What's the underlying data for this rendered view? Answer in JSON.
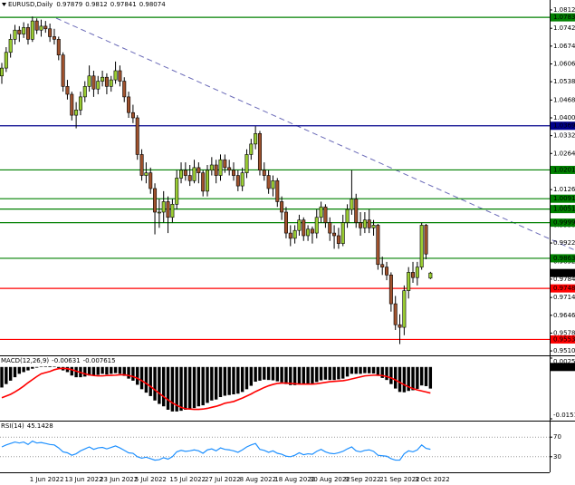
{
  "chart_data": [
    {
      "type": "candlestick",
      "title": "EURUSD,Daily",
      "categories": [
        null,
        null,
        null,
        null,
        null,
        null,
        null,
        "1 Jun 2022",
        null,
        null,
        null,
        null,
        null,
        null,
        null,
        "13 Jun 2022",
        null,
        null,
        null,
        null,
        null,
        null,
        null,
        "23 Jun 2022",
        null,
        null,
        null,
        null,
        null,
        null,
        null,
        "5 Jul 2022",
        null,
        null,
        null,
        null,
        null,
        null,
        null,
        "15 Jul 2022",
        null,
        null,
        null,
        null,
        null,
        null,
        null,
        "27 Jul 2022",
        null,
        null,
        null,
        null,
        null,
        null,
        null,
        "8 Aug 2022",
        null,
        null,
        null,
        null,
        null,
        null,
        null,
        "18 Aug 2022",
        null,
        null,
        null,
        null,
        null,
        null,
        null,
        "30 Aug 2022",
        null,
        null,
        null,
        null,
        null,
        null,
        null,
        "9 Sep 2022",
        null,
        null,
        null,
        null,
        null,
        null,
        null,
        "21 Sep 2022",
        null,
        null,
        null,
        null,
        null,
        null,
        null,
        "3 Oct 2022",
        null,
        null,
        null
      ],
      "ohlc": [
        [
          1.056,
          1.061,
          1.053,
          1.059
        ],
        [
          1.059,
          1.067,
          1.0575,
          1.065
        ],
        [
          1.065,
          1.072,
          1.063,
          1.07
        ],
        [
          1.07,
          1.0755,
          1.068,
          1.0735
        ],
        [
          1.0735,
          1.075,
          1.069,
          1.072
        ],
        [
          1.072,
          1.0765,
          1.0705,
          1.0745
        ],
        [
          1.0745,
          1.076,
          1.068,
          1.07
        ],
        [
          1.07,
          1.0787,
          1.069,
          1.077
        ],
        [
          1.077,
          1.078,
          1.072,
          1.0735
        ],
        [
          1.0735,
          1.0775,
          1.071,
          1.075
        ],
        [
          1.075,
          1.077,
          1.0725,
          1.074
        ],
        [
          1.074,
          1.076,
          1.069,
          1.071
        ],
        [
          1.071,
          1.074,
          1.068,
          1.07
        ],
        [
          1.07,
          1.071,
          1.062,
          1.064
        ],
        [
          1.064,
          1.065,
          1.05,
          1.052
        ],
        [
          1.052,
          1.0545,
          1.047,
          1.049
        ],
        [
          1.049,
          1.05,
          1.039,
          1.041
        ],
        [
          1.041,
          1.046,
          1.036,
          1.043
        ],
        [
          1.043,
          1.05,
          1.041,
          1.048
        ],
        [
          1.048,
          1.054,
          1.046,
          1.052
        ],
        [
          1.052,
          1.06,
          1.05,
          1.056
        ],
        [
          1.056,
          1.058,
          1.048,
          1.051
        ],
        [
          1.051,
          1.056,
          1.049,
          1.054
        ],
        [
          1.054,
          1.058,
          1.052,
          1.0555
        ],
        [
          1.0555,
          1.057,
          1.049,
          1.052
        ],
        [
          1.052,
          1.056,
          1.05,
          1.0545
        ],
        [
          1.0545,
          1.0615,
          1.053,
          1.058
        ],
        [
          1.058,
          1.06,
          1.052,
          1.054
        ],
        [
          1.054,
          1.0555,
          1.046,
          1.048
        ],
        [
          1.048,
          1.05,
          1.04,
          1.042
        ],
        [
          1.042,
          1.045,
          1.038,
          1.04
        ],
        [
          1.04,
          1.041,
          1.024,
          1.026
        ],
        [
          1.026,
          1.028,
          1.016,
          1.018
        ],
        [
          1.018,
          1.023,
          1.015,
          1.019
        ],
        [
          1.019,
          1.021,
          1.011,
          1.013
        ],
        [
          1.013,
          1.015,
          0.9955,
          1.004
        ],
        [
          1.004,
          1.009,
          0.998,
          1.004
        ],
        [
          1.004,
          1.012,
          1.0,
          1.008
        ],
        [
          1.008,
          1.01,
          0.996,
          1.002
        ],
        [
          1.002,
          1.009,
          1.0,
          1.007
        ],
        [
          1.007,
          1.02,
          1.005,
          1.017
        ],
        [
          1.017,
          1.023,
          1.015,
          1.02
        ],
        [
          1.02,
          1.023,
          1.016,
          1.018
        ],
        [
          1.018,
          1.022,
          1.014,
          1.016
        ],
        [
          1.016,
          1.024,
          1.015,
          1.021
        ],
        [
          1.021,
          1.023,
          1.015,
          1.019
        ],
        [
          1.019,
          1.02,
          1.01,
          1.012
        ],
        [
          1.012,
          1.022,
          1.01,
          1.02
        ],
        [
          1.02,
          1.025,
          1.018,
          1.022
        ],
        [
          1.022,
          1.024,
          1.015,
          1.018
        ],
        [
          1.018,
          1.026,
          1.016,
          1.024
        ],
        [
          1.024,
          1.026,
          1.019,
          1.021
        ],
        [
          1.021,
          1.024,
          1.018,
          1.02
        ],
        [
          1.02,
          1.023,
          1.016,
          1.018
        ],
        [
          1.018,
          1.02,
          1.012,
          1.014
        ],
        [
          1.014,
          1.021,
          1.012,
          1.019
        ],
        [
          1.019,
          1.028,
          1.017,
          1.026
        ],
        [
          1.026,
          1.032,
          1.024,
          1.03
        ],
        [
          1.03,
          1.0368,
          1.028,
          1.034
        ],
        [
          1.034,
          1.035,
          1.018,
          1.02
        ],
        [
          1.02,
          1.023,
          1.016,
          1.018
        ],
        [
          1.018,
          1.02,
          1.011,
          1.013
        ],
        [
          1.013,
          1.018,
          1.01,
          1.016
        ],
        [
          1.016,
          1.017,
          1.006,
          1.008
        ],
        [
          1.008,
          1.01,
          1.001,
          1.004
        ],
        [
          1.004,
          1.006,
          0.994,
          0.996
        ],
        [
          0.996,
          0.999,
          0.991,
          0.994
        ],
        [
          0.994,
          0.999,
          0.992,
          0.997
        ],
        [
          0.997,
          1.003,
          0.995,
          1.001
        ],
        [
          1.001,
          1.002,
          0.993,
          0.995
        ],
        [
          0.995,
          0.999,
          0.993,
          0.9975
        ],
        [
          0.9975,
          0.9985,
          0.992,
          0.996
        ],
        [
          0.996,
          1.005,
          0.994,
          1.002
        ],
        [
          1.002,
          1.008,
          1.0,
          1.006
        ],
        [
          1.006,
          1.007,
          0.998,
          1.0
        ],
        [
          1.0,
          1.002,
          0.993,
          0.996
        ],
        [
          0.996,
          0.999,
          0.99,
          0.995
        ],
        [
          0.995,
          0.998,
          0.99,
          0.992
        ],
        [
          0.992,
          1.003,
          0.991,
          1.0
        ],
        [
          1.0,
          1.007,
          0.998,
          1.005
        ],
        [
          1.005,
          1.02,
          1.003,
          1.009
        ],
        [
          1.009,
          1.011,
          0.998,
          1.0
        ],
        [
          1.0,
          1.004,
          0.995,
          0.998
        ],
        [
          0.998,
          1.004,
          0.996,
          1.001
        ],
        [
          1.001,
          1.005,
          0.996,
          0.998
        ],
        [
          0.998,
          1.001,
          0.995,
          0.999
        ],
        [
          0.999,
          0.9995,
          0.982,
          0.984
        ],
        [
          0.984,
          0.987,
          0.98,
          0.983
        ],
        [
          0.983,
          0.985,
          0.978,
          0.98
        ],
        [
          0.98,
          0.981,
          0.966,
          0.969
        ],
        [
          0.969,
          0.972,
          0.959,
          0.961
        ],
        [
          0.961,
          0.965,
          0.9536,
          0.96
        ],
        [
          0.96,
          0.976,
          0.957,
          0.974
        ],
        [
          0.974,
          0.983,
          0.971,
          0.981
        ],
        [
          0.981,
          0.985,
          0.977,
          0.979
        ],
        [
          0.979,
          0.985,
          0.976,
          0.983
        ],
        [
          0.983,
          0.9999,
          0.982,
          0.999
        ],
        [
          0.999,
          0.9995,
          0.986,
          0.988
        ],
        [
          0.97879,
          0.9812,
          0.97841,
          0.98074
        ]
      ],
      "up_color": "#9acd32",
      "down_color": "#a0522d",
      "ylim": [
        0.9493,
        1.085
      ],
      "yticks": [
        {
          "value": 1.0812,
          "label": "1.08120"
        },
        {
          "value": 1.0742,
          "label": "1.07420"
        },
        {
          "value": 1.0674,
          "label": "1.06740"
        },
        {
          "value": 1.0606,
          "label": "1.06060"
        },
        {
          "value": 1.0538,
          "label": "1.05380"
        },
        {
          "value": 1.0468,
          "label": "1.04680"
        },
        {
          "value": 1.04,
          "label": "1.04000"
        },
        {
          "value": 1.0332,
          "label": "1.03320"
        },
        {
          "value": 1.0264,
          "label": "1.02640"
        },
        {
          "value": 1.0196,
          "label": "1.01960"
        },
        {
          "value": 1.0126,
          "label": "1.01260"
        },
        {
          "value": 1.0058,
          "label": "1.00580"
        },
        {
          "value": 0.999,
          "label": "0.99900"
        },
        {
          "value": 0.9922,
          "label": "0.99220"
        },
        {
          "value": 0.9852,
          "label": "0.98520"
        },
        {
          "value": 0.9784,
          "label": "0.97840"
        },
        {
          "value": 0.9714,
          "label": "0.97140"
        },
        {
          "value": 0.9646,
          "label": "0.96460"
        },
        {
          "value": 0.9578,
          "label": "0.95780"
        },
        {
          "value": 0.951,
          "label": "0.95100"
        }
      ],
      "levels": [
        {
          "value": 1.07838,
          "color": "#008000"
        },
        {
          "value": 1.03697,
          "color": "#00008b"
        },
        {
          "value": 1.02011,
          "color": "#008000"
        },
        {
          "value": 1.00912,
          "color": "#008000"
        },
        {
          "value": 1.00516,
          "color": "#008000"
        },
        {
          "value": 0.99997,
          "color": "#008000"
        },
        {
          "value": 0.98637,
          "color": "#008000"
        },
        {
          "value": 0.97487,
          "color": "#ff0000"
        },
        {
          "value": 0.95538,
          "color": "#ff0000"
        }
      ]
    },
    {
      "type": "macd",
      "title": "MACD(12,26,9)",
      "histogram": [
        -0.006,
        -0.005,
        -0.004,
        -0.003,
        -0.002,
        -0.0015,
        -0.001,
        -0.0005,
        -0.0002,
        0.0001,
        0.00015,
        0.0002,
        0.0001,
        -0.0003,
        -0.001,
        -0.0015,
        -0.0025,
        -0.003,
        -0.003,
        -0.0028,
        -0.0025,
        -0.0025,
        -0.0023,
        -0.002,
        -0.0022,
        -0.002,
        -0.0018,
        -0.002,
        -0.0026,
        -0.0034,
        -0.004,
        -0.0052,
        -0.0065,
        -0.0075,
        -0.0085,
        -0.0098,
        -0.0108,
        -0.0115,
        -0.0125,
        -0.013,
        -0.013,
        -0.0128,
        -0.0125,
        -0.0123,
        -0.012,
        -0.0115,
        -0.0112,
        -0.0105,
        -0.0098,
        -0.0095,
        -0.0088,
        -0.0084,
        -0.0082,
        -0.008,
        -0.0078,
        -0.0073,
        -0.0065,
        -0.0055,
        -0.0043,
        -0.004,
        -0.0037,
        -0.0038,
        -0.0039,
        -0.0042,
        -0.0045,
        -0.005,
        -0.0053,
        -0.0053,
        -0.005,
        -0.005,
        -0.0049,
        -0.0048,
        -0.0044,
        -0.0039,
        -0.0037,
        -0.0038,
        -0.0038,
        -0.0036,
        -0.0034,
        -0.0028,
        -0.002,
        -0.002,
        -0.002,
        -0.0018,
        -0.00185,
        -0.0019,
        -0.0026,
        -0.0032,
        -0.0038,
        -0.005,
        -0.0063,
        -0.0073,
        -0.0074,
        -0.007,
        -0.0068,
        -0.0064,
        -0.0054,
        -0.0056,
        -0.00631
      ],
      "signal": [
        -0.009,
        -0.0085,
        -0.008,
        -0.0073,
        -0.0065,
        -0.0056,
        -0.0046,
        -0.0037,
        -0.0028,
        -0.002,
        -0.00165,
        -0.0013,
        -0.0008,
        -0.0005,
        -0.0004,
        -0.0005,
        -0.0008,
        -0.0012,
        -0.0016,
        -0.002,
        -0.0023,
        -0.0025,
        -0.0026,
        -0.0026,
        -0.0025,
        -0.00245,
        -0.0024,
        -0.0023,
        -0.0023,
        -0.0025,
        -0.0028,
        -0.0033,
        -0.004,
        -0.0048,
        -0.0057,
        -0.0067,
        -0.0077,
        -0.0087,
        -0.0096,
        -0.0105,
        -0.0112,
        -0.0118,
        -0.0122,
        -0.0123,
        -0.0124,
        -0.0124,
        -0.0123,
        -0.0121,
        -0.0118,
        -0.0115,
        -0.0111,
        -0.0106,
        -0.01035,
        -0.0101,
        -0.0096,
        -0.0091,
        -0.0085,
        -0.0079,
        -0.0072,
        -0.0066,
        -0.006,
        -0.0055,
        -0.0051,
        -0.0048,
        -0.0047,
        -0.0047,
        -0.0048,
        -0.0049,
        -0.005,
        -0.005,
        -0.005,
        -0.005,
        -0.0049,
        -0.0047,
        -0.0045,
        -0.0043,
        -0.0042,
        -0.0041,
        -0.004,
        -0.0038,
        -0.0035,
        -0.0032,
        -0.0029,
        -0.0026,
        -0.0025,
        -0.0024,
        -0.0024,
        -0.0025,
        -0.0028,
        -0.0032,
        -0.0038,
        -0.0045,
        -0.0052,
        -0.0058,
        -0.0063,
        -0.0067,
        -0.007,
        -0.0073,
        -0.007615
      ],
      "color": "#000000",
      "signal_color": "#ff0000",
      "ylim": [
        -0.015154,
        0.002598
      ],
      "yticks": [
        0.002598,
        {
          "value": 0,
          "label": "0.00"
        },
        -0.015154
      ]
    },
    {
      "type": "line",
      "title": "RSI(14)",
      "values": [
        50,
        54,
        57,
        60,
        58,
        60,
        55,
        62,
        58,
        59,
        57,
        55,
        54,
        48,
        40,
        38,
        33,
        36,
        42,
        46,
        50,
        45,
        48,
        49,
        46,
        49,
        52,
        48,
        43,
        38,
        37,
        30,
        27,
        29,
        26,
        23,
        24,
        28,
        25,
        30,
        40,
        43,
        41,
        42,
        44,
        42,
        37,
        44,
        46,
        42,
        48,
        45,
        44,
        42,
        39,
        44,
        50,
        54,
        57,
        45,
        43,
        39,
        42,
        37,
        35,
        31,
        30,
        33,
        38,
        34,
        36,
        35,
        41,
        45,
        40,
        37,
        36,
        38,
        41,
        46,
        50,
        42,
        40,
        43,
        44,
        41,
        33,
        32,
        31,
        26,
        23,
        23,
        36,
        42,
        40,
        44,
        54,
        47,
        45.1428
      ],
      "color": "#1e90ff",
      "ylim": [
        0,
        100
      ],
      "yticks": [
        70,
        30
      ]
    }
  ]
}
